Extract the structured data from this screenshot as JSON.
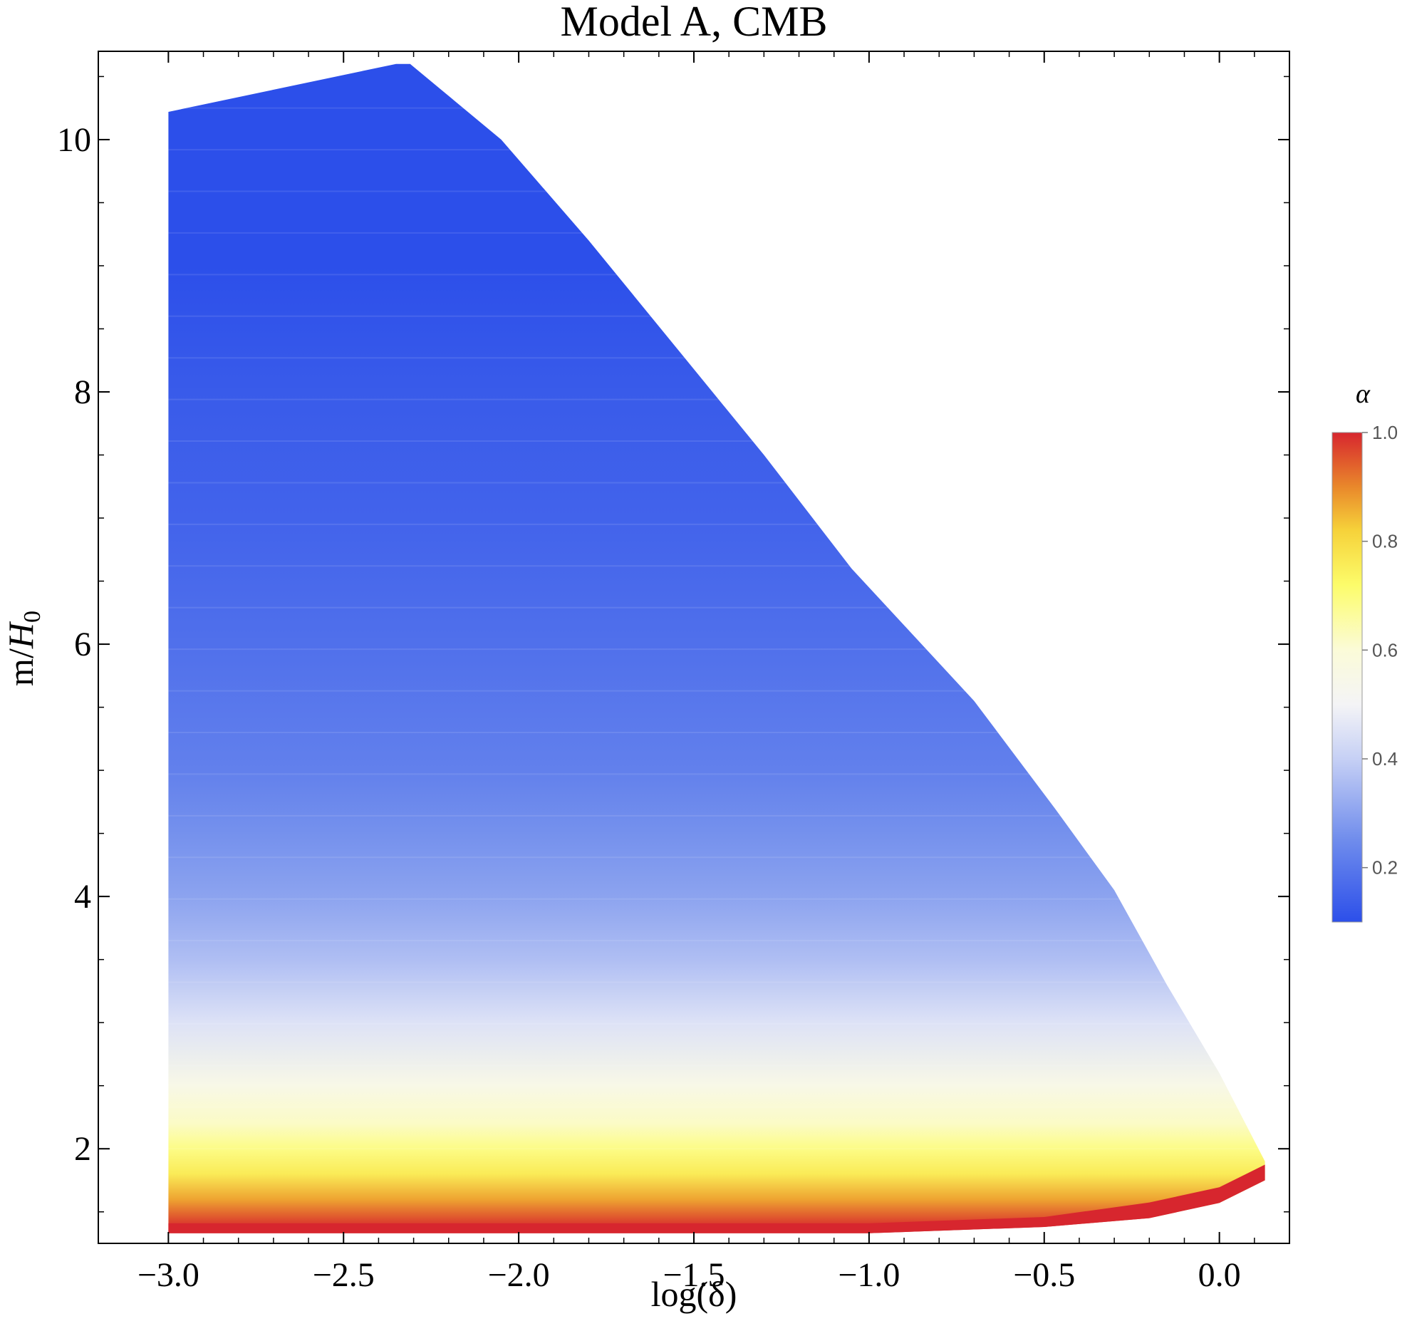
{
  "chart_data": {
    "type": "contour",
    "title": "Model A, CMB",
    "xlabel": "log(δ)",
    "ylabel": "m/H0",
    "ylabel_parts": {
      "base": "m/",
      "var": "H",
      "sub": "0"
    },
    "xlim": [
      -3.2,
      0.2
    ],
    "ylim": [
      1.25,
      10.7
    ],
    "x_ticks": [
      -3.0,
      -2.5,
      -2.0,
      -1.5,
      -1.0,
      -0.5,
      0.0
    ],
    "x_tick_labels": [
      "−3.0",
      "−2.5",
      "−2.0",
      "−1.5",
      "−1.0",
      "−0.5",
      "0.0"
    ],
    "y_ticks": [
      2,
      4,
      6,
      8,
      10
    ],
    "y_tick_labels": [
      "2",
      "4",
      "6",
      "8",
      "10"
    ],
    "region_boundary": [
      [
        -3.0,
        10.22
      ],
      [
        -2.35,
        10.6
      ],
      [
        -2.31,
        10.6
      ],
      [
        -2.05,
        10.0
      ],
      [
        -1.8,
        9.2
      ],
      [
        -1.55,
        8.35
      ],
      [
        -1.3,
        7.5
      ],
      [
        -1.05,
        6.6
      ],
      [
        -0.7,
        5.55
      ],
      [
        -0.47,
        4.7
      ],
      [
        -0.3,
        4.05
      ],
      [
        -0.15,
        3.3
      ],
      [
        0.0,
        2.6
      ],
      [
        0.13,
        1.9
      ],
      [
        0.13,
        1.75
      ],
      [
        0.0,
        1.57
      ],
      [
        -0.2,
        1.45
      ],
      [
        -0.5,
        1.38
      ],
      [
        -1.0,
        1.33
      ],
      [
        -3.0,
        1.33
      ]
    ],
    "alpha_profile_vs_m": [
      [
        1.33,
        1.0
      ],
      [
        1.42,
        0.97
      ],
      [
        1.6,
        0.87
      ],
      [
        1.8,
        0.76
      ],
      [
        2.0,
        0.69
      ],
      [
        2.2,
        0.62
      ],
      [
        2.5,
        0.55
      ],
      [
        3.0,
        0.45
      ],
      [
        3.5,
        0.36
      ],
      [
        4.0,
        0.3
      ],
      [
        4.5,
        0.26
      ],
      [
        5.0,
        0.22
      ],
      [
        6.0,
        0.18
      ],
      [
        7.0,
        0.15
      ],
      [
        8.0,
        0.13
      ],
      [
        9.0,
        0.1
      ],
      [
        10.6,
        0.09
      ]
    ],
    "colorbar": {
      "title": "α",
      "range": [
        0.1,
        1.0
      ],
      "ticks": [
        0.2,
        0.4,
        0.6,
        0.8,
        1.0
      ],
      "tick_labels": [
        "0.2",
        "0.4",
        "0.6",
        "0.8",
        "1.0"
      ],
      "gradient": [
        [
          0.1,
          "#2c4fea"
        ],
        [
          0.25,
          "#6f8cec"
        ],
        [
          0.4,
          "#c6d0f5"
        ],
        [
          0.5,
          "#f4f4f6"
        ],
        [
          0.6,
          "#fbfbd8"
        ],
        [
          0.72,
          "#fcfc6a"
        ],
        [
          0.82,
          "#f6d23a"
        ],
        [
          0.9,
          "#e9882b"
        ],
        [
          1.0,
          "#d7262e"
        ]
      ]
    }
  }
}
